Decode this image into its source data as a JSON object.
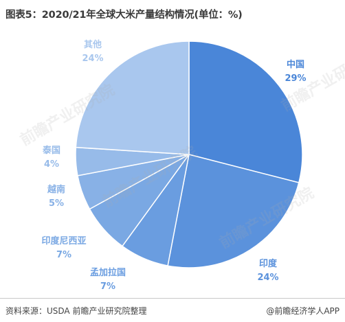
{
  "title": "图表5：2020/21年全球大米产量结构情况(单位：%)",
  "footer": {
    "source": "资料来源：USDA 前瞻产业研究院整理",
    "credit": "@前瞻经济学人APP"
  },
  "watermark": "前瞻产业研究院",
  "colors": {
    "中国": "#4a86d8",
    "印度": "#5b92dc",
    "孟加拉国": "#6a9de0",
    "印度尼西亚": "#7aa8e3",
    "越南": "#88b1e6",
    "泰国": "#97bbe9",
    "其他": "#a9c7ee"
  },
  "chart_data": {
    "type": "pie",
    "title": "图表5：2020/21年全球大米产量结构情况(单位：%)",
    "categories": [
      "中国",
      "印度",
      "孟加拉国",
      "印度尼西亚",
      "越南",
      "泰国",
      "其他"
    ],
    "values": [
      29,
      24,
      7,
      7,
      5,
      4,
      24
    ],
    "labels": [
      "29%",
      "24%",
      "7%",
      "7%",
      "5%",
      "4%",
      "24%"
    ],
    "start": "12 o'clock",
    "direction": "clockwise",
    "legend": "none"
  }
}
